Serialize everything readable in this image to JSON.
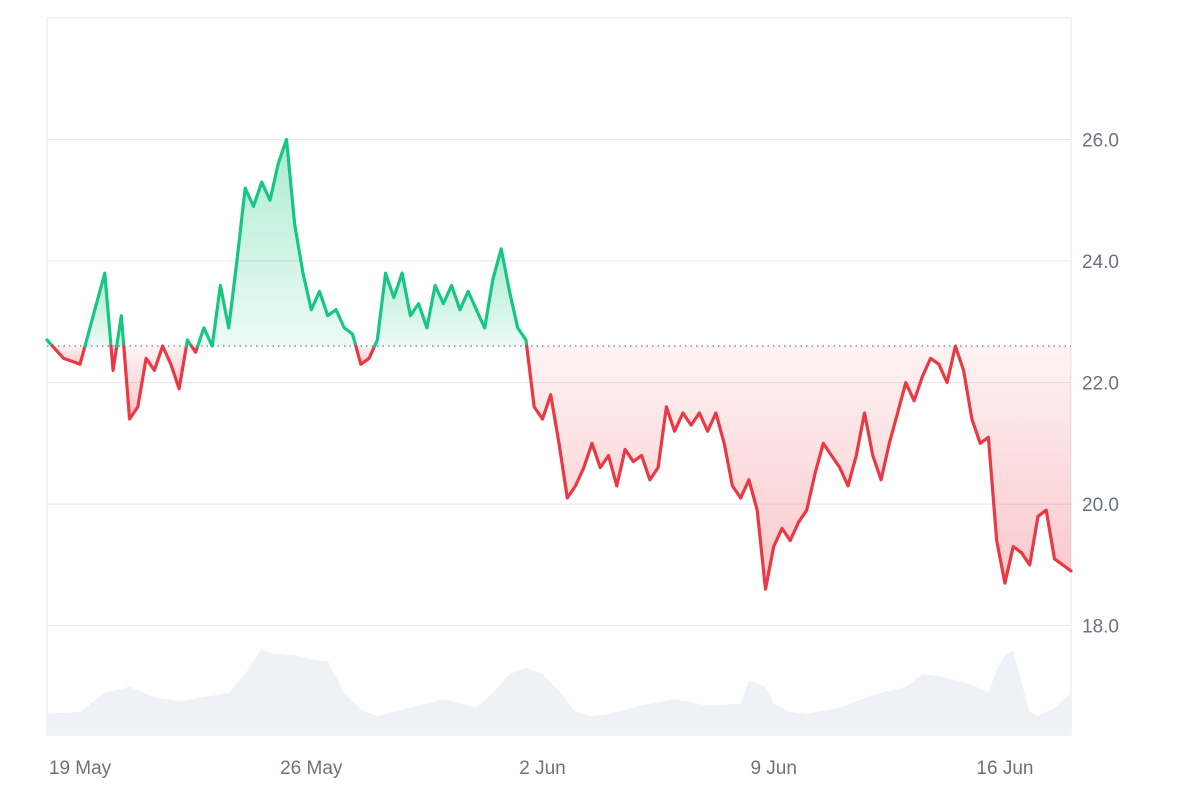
{
  "chart_data": {
    "type": "line",
    "baseline": 22.6,
    "ylim": [
      16.2,
      28.0
    ],
    "yticks": [
      {
        "value": 18,
        "label": "18.0"
      },
      {
        "value": 20,
        "label": "20.0"
      },
      {
        "value": 22,
        "label": "22.0"
      },
      {
        "value": 24,
        "label": "24.0"
      },
      {
        "value": 26,
        "label": "26.0"
      }
    ],
    "xlim": [
      "2024-05-18",
      "2024-06-18"
    ],
    "xticks": [
      {
        "date": "2024-05-19",
        "label": "19 May"
      },
      {
        "date": "2024-05-26",
        "label": "26 May"
      },
      {
        "date": "2024-06-02",
        "label": "2 Jun"
      },
      {
        "date": "2024-06-09",
        "label": "9 Jun"
      },
      {
        "date": "2024-06-16",
        "label": "16 Jun"
      }
    ],
    "series": [
      {
        "values": [
          [
            "2024-05-18",
            22.7
          ],
          [
            "2024-05-18T12:00",
            22.4
          ],
          [
            "2024-05-19",
            22.3
          ],
          [
            "2024-05-19T06:00",
            22.8
          ],
          [
            "2024-05-19T12:00",
            23.3
          ],
          [
            "2024-05-19T18:00",
            23.8
          ],
          [
            "2024-05-20",
            22.2
          ],
          [
            "2024-05-20T06:00",
            23.1
          ],
          [
            "2024-05-20T12:00",
            21.4
          ],
          [
            "2024-05-20T18:00",
            21.6
          ],
          [
            "2024-05-21",
            22.4
          ],
          [
            "2024-05-21T06:00",
            22.2
          ],
          [
            "2024-05-21T12:00",
            22.6
          ],
          [
            "2024-05-21T18:00",
            22.3
          ],
          [
            "2024-05-22",
            21.9
          ],
          [
            "2024-05-22T06:00",
            22.7
          ],
          [
            "2024-05-22T12:00",
            22.5
          ],
          [
            "2024-05-22T18:00",
            22.9
          ],
          [
            "2024-05-23",
            22.6
          ],
          [
            "2024-05-23T06:00",
            23.6
          ],
          [
            "2024-05-23T12:00",
            22.9
          ],
          [
            "2024-05-23T18:00",
            24.0
          ],
          [
            "2024-05-24",
            25.2
          ],
          [
            "2024-05-24T06:00",
            24.9
          ],
          [
            "2024-05-24T12:00",
            25.3
          ],
          [
            "2024-05-24T18:00",
            25.0
          ],
          [
            "2024-05-25",
            25.6
          ],
          [
            "2024-05-25T06:00",
            26.0
          ],
          [
            "2024-05-25T12:00",
            24.6
          ],
          [
            "2024-05-25T18:00",
            23.8
          ],
          [
            "2024-05-26",
            23.2
          ],
          [
            "2024-05-26T06:00",
            23.5
          ],
          [
            "2024-05-26T12:00",
            23.1
          ],
          [
            "2024-05-26T18:00",
            23.2
          ],
          [
            "2024-05-27",
            22.9
          ],
          [
            "2024-05-27T06:00",
            22.8
          ],
          [
            "2024-05-27T12:00",
            22.3
          ],
          [
            "2024-05-27T18:00",
            22.4
          ],
          [
            "2024-05-28",
            22.7
          ],
          [
            "2024-05-28T06:00",
            23.8
          ],
          [
            "2024-05-28T12:00",
            23.4
          ],
          [
            "2024-05-28T18:00",
            23.8
          ],
          [
            "2024-05-29",
            23.1
          ],
          [
            "2024-05-29T06:00",
            23.3
          ],
          [
            "2024-05-29T12:00",
            22.9
          ],
          [
            "2024-05-29T18:00",
            23.6
          ],
          [
            "2024-05-30",
            23.3
          ],
          [
            "2024-05-30T06:00",
            23.6
          ],
          [
            "2024-05-30T12:00",
            23.2
          ],
          [
            "2024-05-30T18:00",
            23.5
          ],
          [
            "2024-05-31",
            23.2
          ],
          [
            "2024-05-31T06:00",
            22.9
          ],
          [
            "2024-05-31T12:00",
            23.7
          ],
          [
            "2024-05-31T18:00",
            24.2
          ],
          [
            "2024-06-01",
            23.5
          ],
          [
            "2024-06-01T06:00",
            22.9
          ],
          [
            "2024-06-01T12:00",
            22.7
          ],
          [
            "2024-06-01T18:00",
            21.6
          ],
          [
            "2024-06-02",
            21.4
          ],
          [
            "2024-06-02T06:00",
            21.8
          ],
          [
            "2024-06-02T12:00",
            21.0
          ],
          [
            "2024-06-02T18:00",
            20.1
          ],
          [
            "2024-06-03",
            20.3
          ],
          [
            "2024-06-03T06:00",
            20.6
          ],
          [
            "2024-06-03T12:00",
            21.0
          ],
          [
            "2024-06-03T18:00",
            20.6
          ],
          [
            "2024-06-04",
            20.8
          ],
          [
            "2024-06-04T06:00",
            20.3
          ],
          [
            "2024-06-04T12:00",
            20.9
          ],
          [
            "2024-06-04T18:00",
            20.7
          ],
          [
            "2024-06-05",
            20.8
          ],
          [
            "2024-06-05T06:00",
            20.4
          ],
          [
            "2024-06-05T12:00",
            20.6
          ],
          [
            "2024-06-05T18:00",
            21.6
          ],
          [
            "2024-06-06",
            21.2
          ],
          [
            "2024-06-06T06:00",
            21.5
          ],
          [
            "2024-06-06T12:00",
            21.3
          ],
          [
            "2024-06-06T18:00",
            21.5
          ],
          [
            "2024-06-07",
            21.2
          ],
          [
            "2024-06-07T06:00",
            21.5
          ],
          [
            "2024-06-07T12:00",
            21.0
          ],
          [
            "2024-06-07T18:00",
            20.3
          ],
          [
            "2024-06-08",
            20.1
          ],
          [
            "2024-06-08T06:00",
            20.4
          ],
          [
            "2024-06-08T12:00",
            19.9
          ],
          [
            "2024-06-08T18:00",
            18.6
          ],
          [
            "2024-06-09",
            19.3
          ],
          [
            "2024-06-09T06:00",
            19.6
          ],
          [
            "2024-06-09T12:00",
            19.4
          ],
          [
            "2024-06-09T18:00",
            19.7
          ],
          [
            "2024-06-10",
            19.9
          ],
          [
            "2024-06-10T06:00",
            20.5
          ],
          [
            "2024-06-10T12:00",
            21.0
          ],
          [
            "2024-06-10T18:00",
            20.8
          ],
          [
            "2024-06-11",
            20.6
          ],
          [
            "2024-06-11T06:00",
            20.3
          ],
          [
            "2024-06-11T12:00",
            20.8
          ],
          [
            "2024-06-11T18:00",
            21.5
          ],
          [
            "2024-06-12",
            20.8
          ],
          [
            "2024-06-12T06:00",
            20.4
          ],
          [
            "2024-06-12T12:00",
            21.0
          ],
          [
            "2024-06-12T18:00",
            21.5
          ],
          [
            "2024-06-13",
            22.0
          ],
          [
            "2024-06-13T06:00",
            21.7
          ],
          [
            "2024-06-13T12:00",
            22.1
          ],
          [
            "2024-06-13T18:00",
            22.4
          ],
          [
            "2024-06-14",
            22.3
          ],
          [
            "2024-06-14T06:00",
            22.0
          ],
          [
            "2024-06-14T12:00",
            22.6
          ],
          [
            "2024-06-14T18:00",
            22.2
          ],
          [
            "2024-06-15",
            21.4
          ],
          [
            "2024-06-15T06:00",
            21.0
          ],
          [
            "2024-06-15T12:00",
            21.1
          ],
          [
            "2024-06-15T18:00",
            19.4
          ],
          [
            "2024-06-16",
            18.7
          ],
          [
            "2024-06-16T06:00",
            19.3
          ],
          [
            "2024-06-16T12:00",
            19.2
          ],
          [
            "2024-06-16T18:00",
            19.0
          ],
          [
            "2024-06-17",
            19.8
          ],
          [
            "2024-06-17T06:00",
            19.9
          ],
          [
            "2024-06-17T12:00",
            19.1
          ],
          [
            "2024-06-18",
            18.9
          ]
        ]
      },
      {
        "type": "area",
        "note": "volume",
        "values": [
          [
            "2024-05-18",
            0.2
          ],
          [
            "2024-05-19",
            0.22
          ],
          [
            "2024-05-19T18:00",
            0.4
          ],
          [
            "2024-05-20T12:00",
            0.46
          ],
          [
            "2024-05-21T06:00",
            0.36
          ],
          [
            "2024-05-22",
            0.32
          ],
          [
            "2024-05-22T18:00",
            0.36
          ],
          [
            "2024-05-23T12:00",
            0.4
          ],
          [
            "2024-05-24",
            0.58
          ],
          [
            "2024-05-24T12:00",
            0.82
          ],
          [
            "2024-05-24T18:00",
            0.78
          ],
          [
            "2024-05-25T12:00",
            0.76
          ],
          [
            "2024-05-26",
            0.72
          ],
          [
            "2024-05-26T12:00",
            0.7
          ],
          [
            "2024-05-27",
            0.4
          ],
          [
            "2024-05-27T12:00",
            0.24
          ],
          [
            "2024-05-28",
            0.18
          ],
          [
            "2024-05-29",
            0.26
          ],
          [
            "2024-05-30",
            0.34
          ],
          [
            "2024-05-31",
            0.26
          ],
          [
            "2024-05-31T12:00",
            0.4
          ],
          [
            "2024-06-01",
            0.58
          ],
          [
            "2024-06-01T12:00",
            0.64
          ],
          [
            "2024-06-02",
            0.58
          ],
          [
            "2024-06-02T12:00",
            0.42
          ],
          [
            "2024-06-03",
            0.22
          ],
          [
            "2024-06-03T12:00",
            0.18
          ],
          [
            "2024-06-04",
            0.2
          ],
          [
            "2024-06-05",
            0.28
          ],
          [
            "2024-06-06",
            0.34
          ],
          [
            "2024-06-07",
            0.28
          ],
          [
            "2024-06-08",
            0.3
          ],
          [
            "2024-06-08T06:00",
            0.52
          ],
          [
            "2024-06-08T18:00",
            0.46
          ],
          [
            "2024-06-09",
            0.3
          ],
          [
            "2024-06-09T12:00",
            0.22
          ],
          [
            "2024-06-10",
            0.2
          ],
          [
            "2024-06-11",
            0.26
          ],
          [
            "2024-06-12",
            0.38
          ],
          [
            "2024-06-13",
            0.46
          ],
          [
            "2024-06-13T12:00",
            0.58
          ],
          [
            "2024-06-14",
            0.56
          ],
          [
            "2024-06-14T12:00",
            0.52
          ],
          [
            "2024-06-15",
            0.48
          ],
          [
            "2024-06-15T12:00",
            0.4
          ],
          [
            "2024-06-15T18:00",
            0.62
          ],
          [
            "2024-06-16",
            0.76
          ],
          [
            "2024-06-16T06:00",
            0.8
          ],
          [
            "2024-06-16T12:00",
            0.5
          ],
          [
            "2024-06-16T18:00",
            0.22
          ],
          [
            "2024-06-17",
            0.18
          ],
          [
            "2024-06-17T12:00",
            0.26
          ],
          [
            "2024-06-18",
            0.4
          ]
        ]
      }
    ],
    "colors": {
      "up": "#16c784",
      "down": "#ea3943",
      "up_fill": "#16c784",
      "down_fill": "#ea3943",
      "volume": "#eef1f5",
      "grid": "#e5e7eb",
      "baseline": "#8a8f98",
      "tick_text": "#6b7280"
    },
    "grid": true,
    "legend": "none"
  }
}
